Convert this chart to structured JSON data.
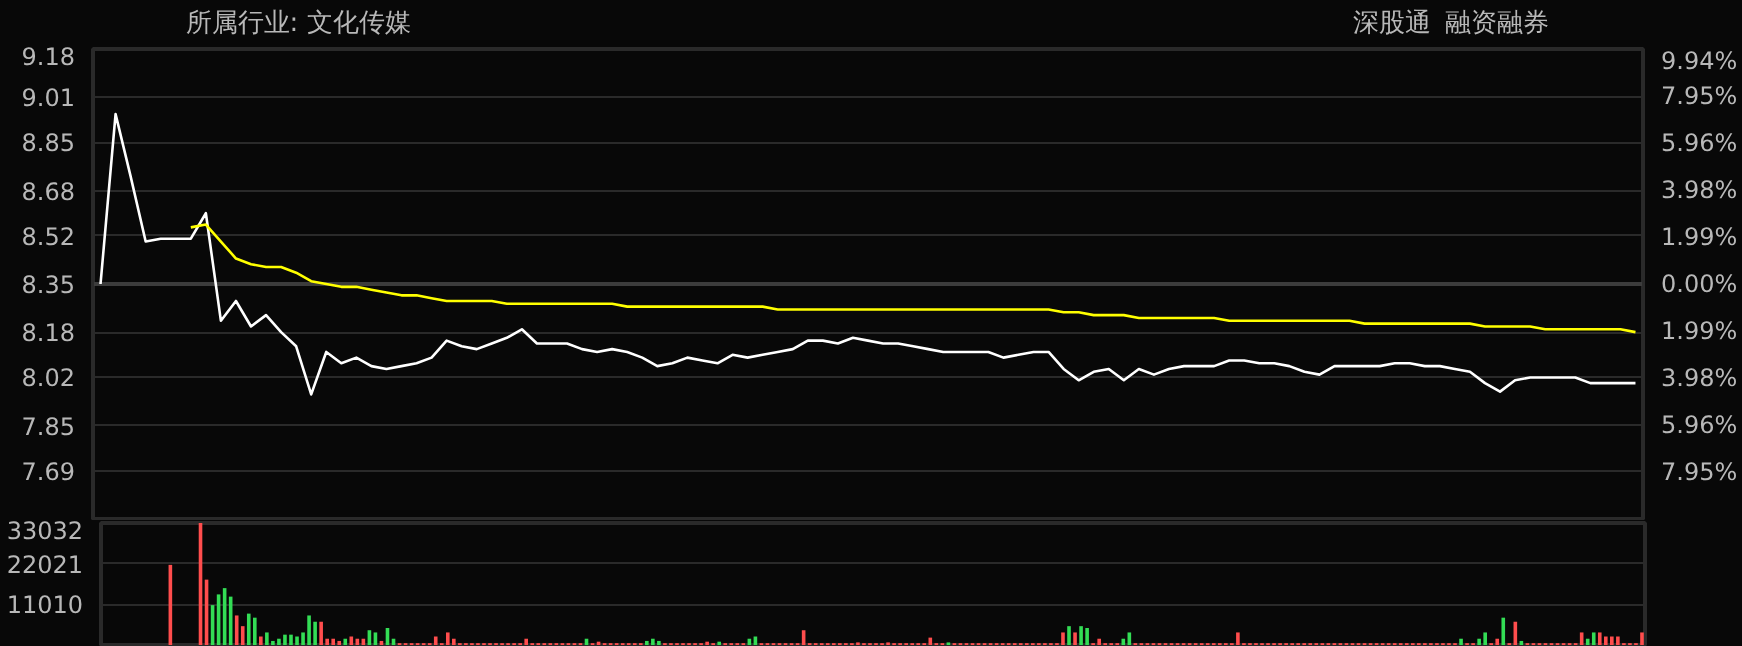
{
  "chart_data": [
    {
      "type": "line",
      "title": "所属行业: 文化传媒",
      "annotations": [
        "深股通",
        "融资融券"
      ],
      "categories": [
        null,
        null,
        null,
        null,
        null,
        null,
        null,
        null,
        null,
        null,
        null,
        null,
        null,
        null,
        null,
        null,
        null,
        null,
        null,
        null,
        null,
        null,
        null,
        null,
        null,
        null,
        null,
        null,
        null,
        null,
        null,
        null,
        null,
        null,
        null,
        null,
        null,
        null,
        null,
        null,
        null,
        null,
        null,
        null,
        null,
        null,
        null,
        null,
        null,
        null,
        null,
        null,
        null,
        null,
        null,
        null,
        null,
        null,
        null,
        null,
        null,
        null,
        null,
        null,
        null,
        null,
        null,
        null,
        null,
        null,
        null,
        null,
        null,
        null,
        null,
        null,
        null,
        null,
        null,
        null,
        null,
        null,
        null,
        null,
        null,
        null,
        null,
        null,
        null,
        null,
        null,
        null,
        null,
        null,
        null,
        null,
        null,
        null,
        null,
        null,
        null,
        null,
        null
      ],
      "series": [
        {
          "name": null,
          "color": "#ffffff",
          "values": [
            8.35,
            8.95,
            8.73,
            8.5,
            8.51,
            8.51,
            8.51,
            8.6,
            8.22,
            8.29,
            8.2,
            8.24,
            8.18,
            8.13,
            7.96,
            8.11,
            8.07,
            8.09,
            8.06,
            8.05,
            8.06,
            8.07,
            8.09,
            8.15,
            8.13,
            8.12,
            8.14,
            8.16,
            8.19,
            8.14,
            8.14,
            8.14,
            8.12,
            8.11,
            8.12,
            8.11,
            8.09,
            8.06,
            8.07,
            8.09,
            8.08,
            8.07,
            8.1,
            8.09,
            8.1,
            8.11,
            8.12,
            8.15,
            8.15,
            8.14,
            8.16,
            8.15,
            8.14,
            8.14,
            8.13,
            8.12,
            8.11,
            8.11,
            8.11,
            8.11,
            8.09,
            8.1,
            8.11,
            8.11,
            8.05,
            8.01,
            8.04,
            8.05,
            8.01,
            8.05,
            8.03,
            8.05,
            8.06,
            8.06,
            8.06,
            8.08,
            8.08,
            8.07,
            8.07,
            8.06,
            8.04,
            8.03,
            8.06,
            8.06,
            8.06,
            8.06,
            8.07,
            8.07,
            8.06,
            8.06,
            8.05,
            8.04,
            8.0,
            7.97,
            8.01,
            8.02,
            8.02,
            8.02,
            8.02,
            8.0,
            8.0,
            8.0,
            8.0
          ]
        },
        {
          "name": null,
          "color": "#ffff00",
          "values": [
            null,
            null,
            null,
            null,
            null,
            null,
            8.55,
            8.56,
            8.5,
            8.44,
            8.42,
            8.41,
            8.41,
            8.39,
            8.36,
            8.35,
            8.34,
            8.34,
            8.33,
            8.32,
            8.31,
            8.31,
            8.3,
            8.29,
            8.29,
            8.29,
            8.29,
            8.28,
            8.28,
            8.28,
            8.28,
            8.28,
            8.28,
            8.28,
            8.28,
            8.27,
            8.27,
            8.27,
            8.27,
            8.27,
            8.27,
            8.27,
            8.27,
            8.27,
            8.27,
            8.26,
            8.26,
            8.26,
            8.26,
            8.26,
            8.26,
            8.26,
            8.26,
            8.26,
            8.26,
            8.26,
            8.26,
            8.26,
            8.26,
            8.26,
            8.26,
            8.26,
            8.26,
            8.26,
            8.25,
            8.25,
            8.24,
            8.24,
            8.24,
            8.23,
            8.23,
            8.23,
            8.23,
            8.23,
            8.23,
            8.22,
            8.22,
            8.22,
            8.22,
            8.22,
            8.22,
            8.22,
            8.22,
            8.22,
            8.21,
            8.21,
            8.21,
            8.21,
            8.21,
            8.21,
            8.21,
            8.21,
            8.2,
            8.2,
            8.2,
            8.2,
            8.19,
            8.19,
            8.19,
            8.19,
            8.19,
            8.19,
            8.18
          ]
        }
      ],
      "ylim": [
        7.52,
        9.18
      ],
      "yticks": [
        7.69,
        7.85,
        8.02,
        8.18,
        8.35,
        8.52,
        8.68,
        8.85,
        9.01,
        9.18
      ],
      "y2lim": [
        -9.94,
        9.94
      ],
      "y2ticks": [
        {
          "value": -7.95,
          "label": "7.95%"
        },
        {
          "value": -5.96,
          "label": "5.96%"
        },
        {
          "value": -3.98,
          "label": "3.98%"
        },
        {
          "value": -1.99,
          "label": "1.99%"
        },
        {
          "value": 0,
          "label": "0.00%"
        },
        {
          "value": 1.99,
          "label": "1.99%"
        },
        {
          "value": 3.98,
          "label": "3.98%"
        },
        {
          "value": 5.96,
          "label": "5.96%"
        },
        {
          "value": 7.95,
          "label": "7.95%"
        },
        {
          "value": 9.94,
          "label": "9.94%"
        }
      ],
      "ref_lines": [
        {
          "axis": "y",
          "value": 8.35,
          "color": "#3c3c3c"
        }
      ],
      "grid": "y",
      "tick_labels": "y"
    },
    {
      "type": "bar",
      "categories": [
        null,
        null,
        null,
        null,
        null,
        null,
        null,
        null,
        null,
        null,
        null,
        null,
        null,
        null,
        null,
        null,
        null,
        null,
        null,
        null,
        null,
        null,
        null,
        null,
        null,
        null,
        null,
        null,
        null,
        null,
        null,
        null,
        null,
        null,
        null,
        null,
        null,
        null,
        null,
        null,
        null,
        null,
        null,
        null,
        null,
        null,
        null,
        null,
        null,
        null,
        null,
        null,
        null,
        null,
        null,
        null,
        null,
        null,
        null,
        null,
        null,
        null,
        null,
        null,
        null,
        null,
        null,
        null,
        null,
        null,
        null,
        null,
        null,
        null,
        null,
        null,
        null,
        null,
        null,
        null,
        null,
        null,
        null,
        null,
        null,
        null,
        null,
        null,
        null,
        null,
        null,
        null,
        null,
        null,
        null,
        null,
        null,
        null,
        null,
        null,
        null,
        null,
        null,
        null,
        null,
        null,
        null,
        null,
        null,
        null,
        null,
        null,
        null,
        null,
        null,
        null,
        null,
        null,
        null,
        null,
        null,
        null,
        null,
        null,
        null,
        null,
        null,
        null,
        null,
        null,
        null,
        null,
        null,
        null,
        null,
        null,
        null,
        null,
        null,
        null,
        null,
        null,
        null,
        null,
        null,
        null,
        null,
        null,
        null,
        null,
        null,
        null,
        null,
        null,
        null,
        null,
        null,
        null,
        null,
        null,
        null,
        null,
        null,
        null,
        null,
        null,
        null,
        null,
        null,
        null,
        null,
        null,
        null,
        null,
        null,
        null,
        null,
        null,
        null,
        null,
        null,
        null,
        null,
        null,
        null,
        null,
        null,
        null,
        null,
        null,
        null,
        null,
        null,
        null,
        null,
        null,
        null,
        null,
        null,
        null,
        null,
        null,
        null,
        null,
        null,
        null,
        null,
        null,
        null,
        null,
        null,
        null,
        null,
        null,
        null,
        null,
        null,
        null,
        null,
        null,
        null,
        null,
        null,
        null,
        null,
        null,
        null,
        null,
        null,
        null,
        null,
        null,
        null,
        null,
        null,
        null,
        null,
        null,
        null,
        null,
        null,
        null,
        null,
        null,
        null,
        null,
        null,
        null,
        null,
        null,
        null,
        null,
        null,
        null,
        null,
        null
      ],
      "values": [
        0,
        0,
        0,
        0,
        0,
        0,
        0,
        0,
        0,
        0,
        0,
        21700,
        0,
        0,
        0,
        0,
        33032,
        17700,
        10800,
        13700,
        15400,
        13100,
        8000,
        5100,
        8500,
        7400,
        2300,
        3400,
        1100,
        1700,
        2800,
        2800,
        2300,
        3400,
        8000,
        6300,
        6300,
        1700,
        1700,
        1100,
        1700,
        2300,
        1700,
        1700,
        4000,
        3400,
        1100,
        4600,
        1700,
        500,
        500,
        500,
        500,
        500,
        500,
        2300,
        500,
        3400,
        1700,
        500,
        500,
        500,
        500,
        500,
        500,
        500,
        500,
        500,
        500,
        500,
        1700,
        500,
        500,
        500,
        500,
        500,
        500,
        500,
        500,
        500,
        1700,
        500,
        900,
        500,
        500,
        500,
        500,
        500,
        500,
        500,
        1100,
        1700,
        1100,
        500,
        500,
        500,
        500,
        500,
        500,
        500,
        900,
        500,
        900,
        500,
        500,
        500,
        500,
        1700,
        2300,
        500,
        500,
        500,
        500,
        500,
        500,
        500,
        4000,
        500,
        500,
        500,
        500,
        500,
        500,
        500,
        500,
        700,
        500,
        500,
        500,
        500,
        700,
        500,
        500,
        500,
        500,
        500,
        500,
        2000,
        500,
        500,
        700,
        500,
        500,
        500,
        500,
        500,
        500,
        500,
        500,
        500,
        500,
        500,
        500,
        500,
        500,
        500,
        500,
        500,
        500,
        3400,
        5100,
        3400,
        5100,
        4600,
        500,
        1700,
        500,
        500,
        500,
        1700,
        3400,
        500,
        500,
        500,
        500,
        500,
        500,
        500,
        500,
        500,
        500,
        500,
        500,
        500,
        500,
        500,
        500,
        500,
        3400,
        500,
        500,
        500,
        500,
        500,
        500,
        500,
        500,
        500,
        500,
        500,
        500,
        500,
        500,
        500,
        500,
        500,
        500,
        500,
        500,
        500,
        500,
        500,
        500,
        500,
        500,
        500,
        500,
        500,
        500,
        500,
        500,
        500,
        500,
        500,
        500,
        1700,
        500,
        500,
        1700,
        3400,
        500,
        1700,
        7400,
        500,
        6300,
        1100,
        500,
        500,
        500,
        500,
        500,
        500,
        500,
        500,
        500,
        3400,
        1700,
        3400,
        3400,
        2300,
        2300,
        2300,
        500,
        500,
        500,
        3400
      ],
      "colors": [
        "#ff4d4d",
        "#ff4d4d",
        "#ff4d4d",
        "#ff4d4d",
        "#ff4d4d",
        "#ff4d4d",
        "#ff4d4d",
        "#ff4d4d",
        "#ff4d4d",
        "#ff4d4d",
        "#ff4d4d",
        "#ff4d4d",
        "#ff4d4d",
        "#ff4d4d",
        "#ff4d4d",
        "#ff4d4d",
        "#ff4d4d",
        "#ff4d4d",
        "#33dd55",
        "#33dd55",
        "#33dd55",
        "#33dd55",
        "#ff4d4d",
        "#ff4d4d",
        "#33dd55",
        "#33dd55",
        "#ff4d4d",
        "#33dd55",
        "#33dd55",
        "#33dd55",
        "#33dd55",
        "#33dd55",
        "#33dd55",
        "#33dd55",
        "#33dd55",
        "#33dd55",
        "#ff4d4d",
        "#ff4d4d",
        "#ff4d4d",
        "#ff4d4d",
        "#33dd55",
        "#ff4d4d",
        "#ff4d4d",
        "#ff4d4d",
        "#33dd55",
        "#33dd55",
        "#ff4d4d",
        "#33dd55",
        "#33dd55",
        "#ff4d4d",
        "#ff4d4d",
        "#ff4d4d",
        "#ff4d4d",
        "#ff4d4d",
        "#ff4d4d",
        "#ff4d4d",
        "#ff4d4d",
        "#ff4d4d",
        "#ff4d4d",
        "#ff4d4d",
        "#ff4d4d",
        "#ff4d4d",
        "#ff4d4d",
        "#ff4d4d",
        "#ff4d4d",
        "#ff4d4d",
        "#ff4d4d",
        "#ff4d4d",
        "#ff4d4d",
        "#ff4d4d",
        "#ff4d4d",
        "#ff4d4d",
        "#ff4d4d",
        "#ff4d4d",
        "#ff4d4d",
        "#ff4d4d",
        "#ff4d4d",
        "#ff4d4d",
        "#ff4d4d",
        "#ff4d4d",
        "#33dd55",
        "#ff4d4d",
        "#ff4d4d",
        "#ff4d4d",
        "#ff4d4d",
        "#ff4d4d",
        "#ff4d4d",
        "#ff4d4d",
        "#ff4d4d",
        "#ff4d4d",
        "#33dd55",
        "#33dd55",
        "#33dd55",
        "#ff4d4d",
        "#ff4d4d",
        "#ff4d4d",
        "#ff4d4d",
        "#ff4d4d",
        "#ff4d4d",
        "#ff4d4d",
        "#ff4d4d",
        "#ff4d4d",
        "#33dd55",
        "#ff4d4d",
        "#ff4d4d",
        "#ff4d4d",
        "#ff4d4d",
        "#33dd55",
        "#33dd55",
        "#ff4d4d",
        "#ff4d4d",
        "#ff4d4d",
        "#ff4d4d",
        "#ff4d4d",
        "#ff4d4d",
        "#ff4d4d",
        "#ff4d4d",
        "#ff4d4d",
        "#ff4d4d",
        "#ff4d4d",
        "#ff4d4d",
        "#ff4d4d",
        "#ff4d4d",
        "#ff4d4d",
        "#ff4d4d",
        "#ff4d4d",
        "#ff4d4d",
        "#ff4d4d",
        "#ff4d4d",
        "#ff4d4d",
        "#ff4d4d",
        "#ff4d4d",
        "#ff4d4d",
        "#ff4d4d",
        "#ff4d4d",
        "#ff4d4d",
        "#ff4d4d",
        "#ff4d4d",
        "#ff4d4d",
        "#ff4d4d",
        "#33dd55",
        "#ff4d4d",
        "#ff4d4d",
        "#ff4d4d",
        "#ff4d4d",
        "#ff4d4d",
        "#ff4d4d",
        "#ff4d4d",
        "#ff4d4d",
        "#ff4d4d",
        "#ff4d4d",
        "#ff4d4d",
        "#ff4d4d",
        "#ff4d4d",
        "#ff4d4d",
        "#ff4d4d",
        "#ff4d4d",
        "#ff4d4d",
        "#ff4d4d",
        "#ff4d4d",
        "#33dd55",
        "#ff4d4d",
        "#33dd55",
        "#33dd55",
        "#ff4d4d",
        "#ff4d4d",
        "#ff4d4d",
        "#ff4d4d",
        "#ff4d4d",
        "#33dd55",
        "#33dd55",
        "#ff4d4d",
        "#ff4d4d",
        "#ff4d4d",
        "#ff4d4d",
        "#ff4d4d",
        "#ff4d4d",
        "#ff4d4d",
        "#ff4d4d",
        "#ff4d4d",
        "#ff4d4d",
        "#ff4d4d",
        "#ff4d4d",
        "#ff4d4d",
        "#ff4d4d",
        "#ff4d4d",
        "#ff4d4d",
        "#ff4d4d",
        "#ff4d4d",
        "#ff4d4d",
        "#ff4d4d",
        "#ff4d4d",
        "#ff4d4d",
        "#ff4d4d",
        "#ff4d4d",
        "#ff4d4d",
        "#ff4d4d",
        "#ff4d4d",
        "#ff4d4d",
        "#ff4d4d",
        "#ff4d4d",
        "#ff4d4d",
        "#ff4d4d",
        "#ff4d4d",
        "#ff4d4d",
        "#ff4d4d",
        "#ff4d4d",
        "#ff4d4d",
        "#ff4d4d",
        "#ff4d4d",
        "#ff4d4d",
        "#ff4d4d",
        "#ff4d4d",
        "#ff4d4d",
        "#ff4d4d",
        "#ff4d4d",
        "#ff4d4d",
        "#ff4d4d",
        "#ff4d4d",
        "#ff4d4d",
        "#ff4d4d",
        "#ff4d4d",
        "#ff4d4d",
        "#ff4d4d",
        "#ff4d4d",
        "#33dd55",
        "#ff4d4d",
        "#ff4d4d",
        "#33dd55",
        "#33dd55",
        "#ff4d4d",
        "#ff4d4d",
        "#33dd55",
        "#ff4d4d",
        "#ff4d4d",
        "#33dd55",
        "#ff4d4d",
        "#ff4d4d",
        "#ff4d4d",
        "#ff4d4d",
        "#ff4d4d",
        "#ff4d4d",
        "#ff4d4d",
        "#ff4d4d",
        "#ff4d4d",
        "#ff4d4d",
        "#33dd55",
        "#33dd55",
        "#ff4d4d",
        "#ff4d4d",
        "#ff4d4d",
        "#ff4d4d",
        "#ff4d4d",
        "#ff4d4d",
        "#ff4d4d",
        "#ff4d4d"
      ],
      "ylim": [
        0,
        33032
      ],
      "yticks": [
        11010,
        22021,
        33032
      ],
      "grid": "y",
      "tick_labels": "y"
    }
  ]
}
